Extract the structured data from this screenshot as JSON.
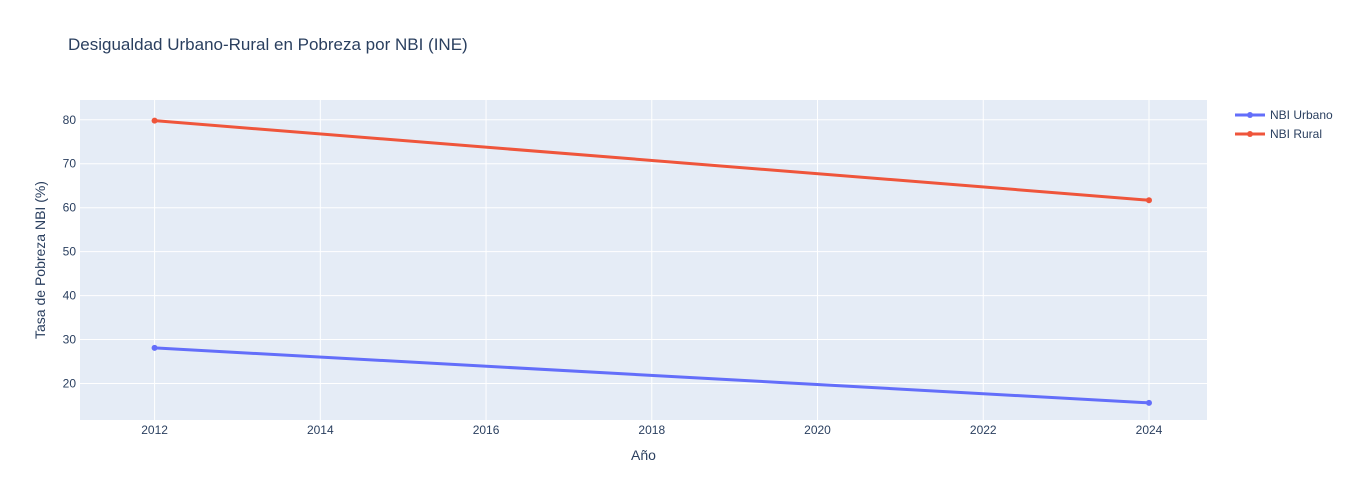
{
  "chart_data": {
    "type": "line",
    "title": "Desigualdad Urbano-Rural en Pobreza por NBI (INE)",
    "xlabel": "Año",
    "ylabel": "Tasa de Pobreza NBI (%)",
    "x": [
      2012,
      2024
    ],
    "xlim": [
      2011.1,
      2024.7
    ],
    "ylim": [
      11.7,
      84.5
    ],
    "xticks": [
      "2012",
      "2014",
      "2016",
      "2018",
      "2020",
      "2022",
      "2024"
    ],
    "yticks": [
      "20",
      "30",
      "40",
      "50",
      "60",
      "70",
      "80"
    ],
    "grid": true,
    "legend_position": "top-right",
    "plot_bg": "#e5ecf6",
    "series": [
      {
        "name": "NBI Urbano",
        "color": "#636efa",
        "values": [
          28.1,
          15.6
        ]
      },
      {
        "name": "NBI Rural",
        "color": "#ef553b",
        "values": [
          79.8,
          61.7
        ]
      }
    ]
  }
}
